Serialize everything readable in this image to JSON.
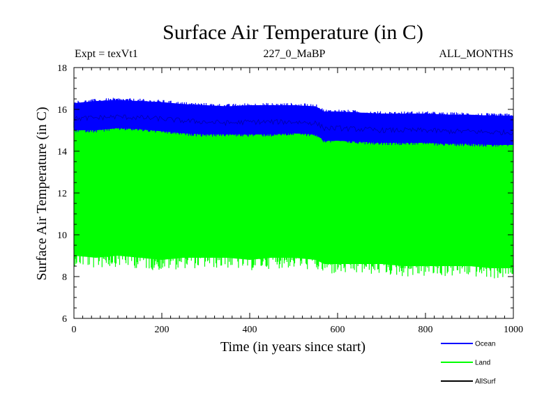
{
  "chart_data": {
    "type": "line",
    "title": "Surface Air Temperature (in C)",
    "expt_label": "Expt = texVt1",
    "subtitle_center": "227_0_MaBP",
    "subtitle_right": "ALL_MONTHS",
    "xlabel": "Time (in years since start)",
    "ylabel": "Surface Air Temperature (in C)",
    "xlim": [
      0,
      1000
    ],
    "ylim": [
      6,
      18
    ],
    "x_ticks": [
      "0",
      "200",
      "400",
      "600",
      "800",
      "1000"
    ],
    "y_ticks": [
      "6",
      "8",
      "10",
      "12",
      "14",
      "16",
      "18"
    ],
    "legend_position": "bottom-right, outside plot",
    "series": [
      {
        "name": "Ocean",
        "color": "#0000ff",
        "x": [
          0,
          50,
          100,
          150,
          200,
          250,
          300,
          350,
          400,
          450,
          500,
          550,
          570,
          600,
          650,
          700,
          750,
          800,
          850,
          900,
          950,
          1000
        ],
        "mean": [
          15.65,
          15.7,
          15.75,
          15.7,
          15.65,
          15.55,
          15.5,
          15.45,
          15.5,
          15.5,
          15.5,
          15.45,
          15.2,
          15.2,
          15.15,
          15.1,
          15.1,
          15.1,
          15.05,
          15.05,
          15.0,
          15.0
        ],
        "band_low": [
          15.0,
          15.0,
          15.1,
          15.05,
          14.95,
          14.85,
          14.8,
          14.8,
          14.8,
          14.8,
          14.85,
          14.8,
          14.5,
          14.5,
          14.45,
          14.4,
          14.4,
          14.4,
          14.35,
          14.35,
          14.3,
          14.3
        ],
        "band_high": [
          16.3,
          16.4,
          16.45,
          16.4,
          16.35,
          16.25,
          16.2,
          16.15,
          16.2,
          16.2,
          16.2,
          16.15,
          15.9,
          15.9,
          15.85,
          15.8,
          15.8,
          15.8,
          15.75,
          15.75,
          15.7,
          15.7
        ]
      },
      {
        "name": "Land",
        "color": "#00ff00",
        "x": [
          0,
          50,
          100,
          150,
          200,
          250,
          300,
          350,
          400,
          450,
          500,
          550,
          570,
          600,
          650,
          700,
          750,
          800,
          850,
          900,
          950,
          1000
        ],
        "mean": [
          12.3,
          12.3,
          12.35,
          12.3,
          12.25,
          12.2,
          12.2,
          12.15,
          12.15,
          12.2,
          12.15,
          12.15,
          11.9,
          11.9,
          11.85,
          11.85,
          11.8,
          11.8,
          11.75,
          11.75,
          11.7,
          11.7
        ],
        "band_low": [
          9.0,
          8.9,
          9.0,
          8.9,
          8.8,
          8.9,
          8.9,
          8.9,
          8.8,
          8.9,
          8.9,
          8.8,
          8.6,
          8.6,
          8.6,
          8.6,
          8.5,
          8.5,
          8.5,
          8.5,
          8.4,
          8.4
        ],
        "band_high": [
          15.3,
          15.3,
          15.35,
          15.3,
          15.2,
          15.15,
          15.1,
          15.05,
          15.1,
          15.1,
          15.05,
          15.0,
          14.75,
          14.75,
          14.7,
          14.7,
          14.65,
          14.65,
          14.6,
          14.6,
          14.55,
          14.55
        ]
      },
      {
        "name": "AllSurf",
        "color": "#000000",
        "x": [
          0,
          50,
          100,
          150,
          200,
          250,
          300,
          350,
          400,
          450,
          500,
          550,
          570,
          600,
          650,
          700,
          750,
          800,
          850,
          900,
          950,
          1000
        ],
        "mean": [
          15.55,
          15.6,
          15.65,
          15.6,
          15.55,
          15.45,
          15.4,
          15.35,
          15.4,
          15.4,
          15.4,
          15.35,
          15.1,
          15.1,
          15.05,
          15.0,
          15.0,
          15.0,
          14.95,
          14.95,
          14.9,
          14.9
        ]
      }
    ]
  }
}
